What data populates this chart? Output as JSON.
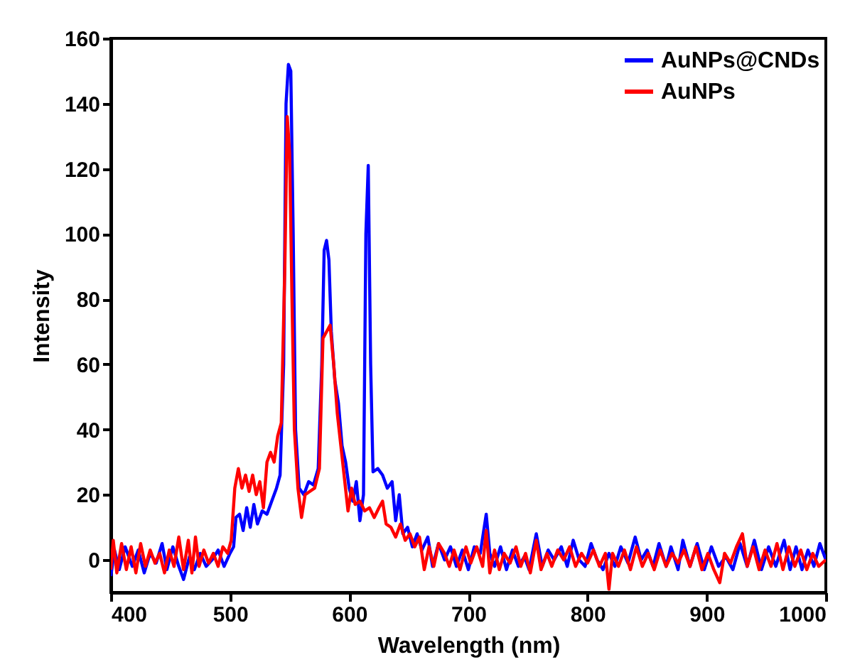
{
  "chart_data": {
    "type": "line",
    "xlabel": "Wavelength (nm)",
    "ylabel": "Intensity",
    "xlim": [
      400,
      1000
    ],
    "ylim": [
      -10,
      160
    ],
    "xticks": [
      400,
      500,
      600,
      700,
      800,
      900,
      1000
    ],
    "yticks": [
      0,
      20,
      40,
      60,
      80,
      100,
      120,
      140,
      160
    ],
    "grid": false,
    "legend": "top right",
    "line_style": "solid",
    "marker": "none",
    "series": [
      {
        "name": "AuNPs@CNDs",
        "color": "#0000ff",
        "x": [
          400,
          403,
          407,
          412,
          418,
          423,
          428,
          433,
          438,
          443,
          447,
          452,
          457,
          461,
          466,
          470,
          475,
          480,
          485,
          490,
          495,
          500,
          503,
          505,
          508,
          511,
          514,
          517,
          520,
          523,
          527,
          531,
          535,
          539,
          542,
          545,
          547,
          549,
          551,
          553,
          555,
          558,
          562,
          566,
          570,
          574,
          577,
          579,
          581,
          583,
          585,
          588,
          591,
          594,
          597,
          600,
          603,
          606,
          609,
          612,
          614,
          616,
          618,
          620,
          624,
          628,
          632,
          636,
          639,
          642,
          645,
          649,
          653,
          657,
          661,
          666,
          670,
          675,
          680,
          685,
          690,
          695,
          700,
          705,
          710,
          715,
          718,
          722,
          727,
          732,
          737,
          742,
          747,
          751,
          757,
          762,
          767,
          772,
          778,
          783,
          788,
          793,
          798,
          803,
          808,
          813,
          818,
          823,
          828,
          834,
          840,
          845,
          850,
          855,
          860,
          866,
          870,
          876,
          880,
          886,
          892,
          898,
          904,
          910,
          916,
          922,
          928,
          934,
          940,
          946,
          952,
          958,
          965,
          970,
          975,
          980,
          985,
          990,
          995,
          1000
        ],
        "values": [
          -5,
          3,
          -3,
          4,
          -2,
          3,
          -4,
          2,
          -1,
          5,
          -3,
          4,
          -2,
          -6,
          1,
          -3,
          2,
          -2,
          0,
          3,
          -2,
          2,
          4,
          13,
          14,
          9,
          16,
          10,
          17,
          11,
          15,
          14,
          18,
          22,
          26,
          60,
          140,
          152,
          150,
          100,
          40,
          22,
          20,
          24,
          23,
          28,
          60,
          95,
          98,
          92,
          70,
          55,
          48,
          35,
          30,
          22,
          18,
          24,
          12,
          20,
          100,
          121,
          60,
          27,
          28,
          26,
          22,
          24,
          12,
          20,
          8,
          10,
          4,
          8,
          3,
          7,
          -2,
          5,
          0,
          4,
          -2,
          3,
          -3,
          4,
          2,
          14,
          2,
          -2,
          4,
          -3,
          3,
          -2,
          1,
          -3,
          8,
          -2,
          3,
          0,
          4,
          -2,
          6,
          0,
          -2,
          5,
          0,
          -3,
          2,
          -2,
          4,
          -1,
          7,
          0,
          3,
          -2,
          5,
          -2,
          4,
          -3,
          6,
          -2,
          5,
          -3,
          4,
          -2,
          1,
          -3,
          5,
          -2,
          6,
          -3,
          4,
          -2,
          6,
          -3,
          4,
          -3,
          3,
          -2,
          5,
          0
        ]
      },
      {
        "name": "AuNPs",
        "color": "#ff0000",
        "x": [
          400,
          402,
          405,
          409,
          413,
          417,
          421,
          425,
          429,
          433,
          437,
          441,
          445,
          449,
          453,
          457,
          461,
          465,
          468,
          471,
          474,
          478,
          482,
          486,
          490,
          494,
          498,
          501,
          504,
          507,
          510,
          513,
          516,
          519,
          522,
          525,
          528,
          531,
          534,
          537,
          540,
          543,
          546,
          548,
          550,
          552,
          554,
          557,
          560,
          563,
          567,
          571,
          575,
          578,
          581,
          584,
          587,
          590,
          593,
          596,
          599,
          602,
          605,
          609,
          613,
          617,
          621,
          625,
          628,
          631,
          635,
          639,
          643,
          647,
          651,
          655,
          659,
          663,
          667,
          671,
          675,
          680,
          684,
          688,
          693,
          698,
          702,
          707,
          712,
          715,
          718,
          722,
          726,
          730,
          735,
          740,
          744,
          748,
          752,
          757,
          761,
          766,
          770,
          775,
          780,
          785,
          790,
          795,
          800,
          805,
          810,
          815,
          818,
          821,
          826,
          831,
          836,
          841,
          846,
          851,
          856,
          861,
          866,
          871,
          876,
          881,
          886,
          891,
          896,
          901,
          906,
          911,
          915,
          920,
          925,
          930,
          934,
          939,
          944,
          949,
          954,
          959,
          964,
          969,
          974,
          979,
          984,
          989,
          994,
          1000
        ],
        "values": [
          -3,
          6,
          -4,
          5,
          -3,
          4,
          -4,
          5,
          -2,
          3,
          -1,
          2,
          -4,
          3,
          -2,
          7,
          -3,
          6,
          -4,
          7,
          -2,
          3,
          -1,
          2,
          -2,
          4,
          2,
          6,
          22,
          28,
          22,
          26,
          21,
          26,
          20,
          24,
          16,
          30,
          33,
          30,
          38,
          42,
          90,
          136,
          125,
          80,
          40,
          22,
          13,
          20,
          21,
          22,
          28,
          68,
          70,
          72,
          60,
          45,
          35,
          25,
          15,
          22,
          17,
          18,
          15,
          16,
          13,
          16,
          18,
          11,
          10,
          7,
          11,
          6,
          8,
          4,
          7,
          -3,
          4,
          -2,
          5,
          2,
          -2,
          3,
          -3,
          4,
          -1,
          4,
          -2,
          9,
          -4,
          3,
          -3,
          2,
          -1,
          4,
          -2,
          2,
          -4,
          6,
          -3,
          2,
          -2,
          3,
          0,
          4,
          -2,
          2,
          -1,
          3,
          -2,
          2,
          -9,
          2,
          -2,
          3,
          -3,
          4,
          -2,
          2,
          -3,
          3,
          -2,
          2,
          -1,
          3,
          -2,
          4,
          -3,
          2,
          -3,
          -7,
          2,
          -1,
          4,
          8,
          -2,
          4,
          -3,
          3,
          -2,
          5,
          -3,
          4,
          -2,
          3,
          -3,
          2,
          -2,
          0
        ]
      }
    ]
  }
}
